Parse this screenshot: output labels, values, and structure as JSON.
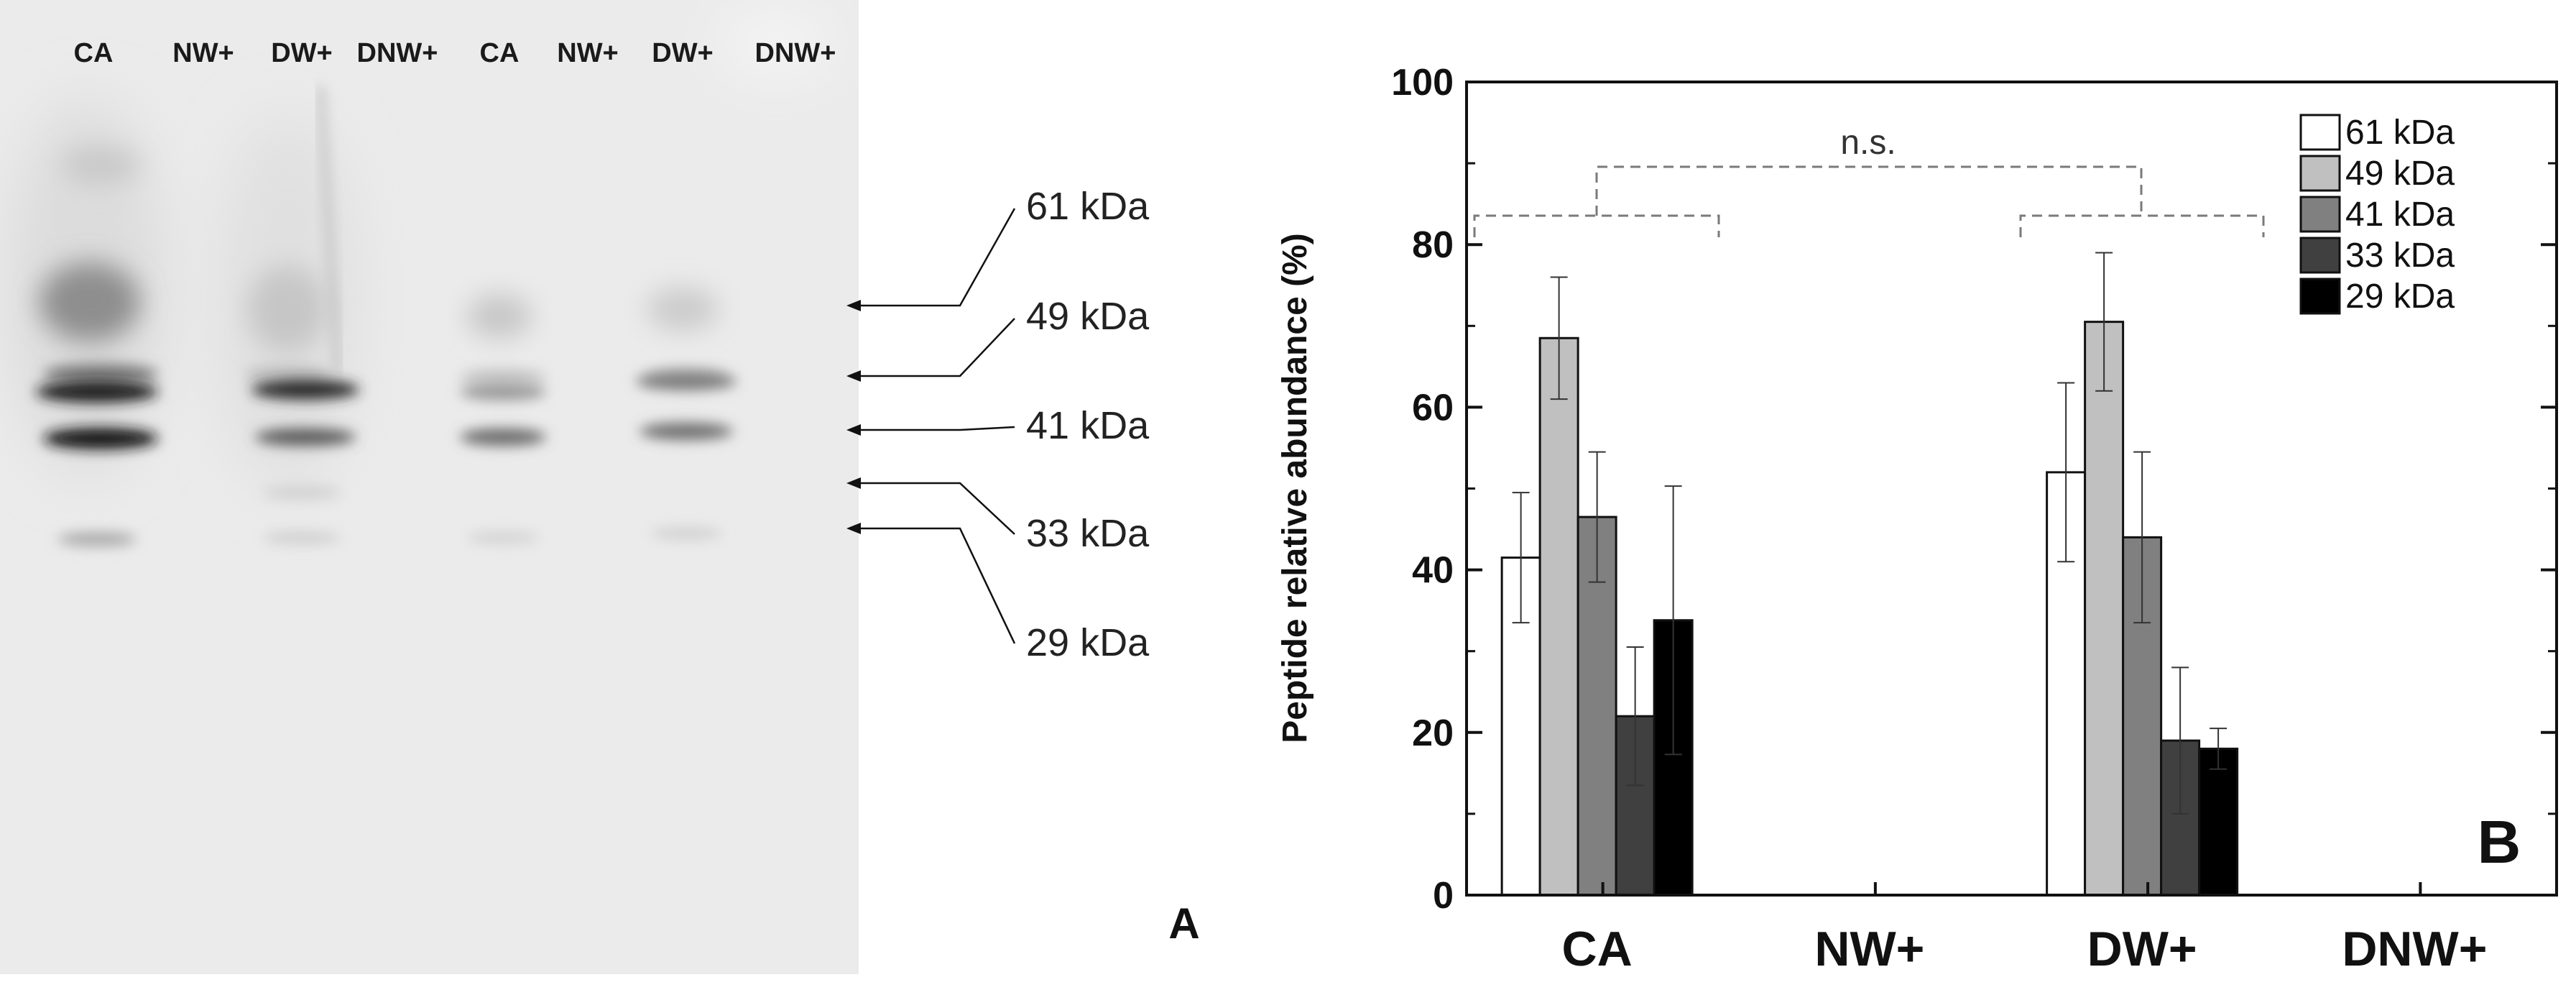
{
  "panel_a": {
    "panel_label": "A",
    "lanes": [
      "CA",
      "NW+",
      "DW+",
      "DNW+",
      "CA",
      "NW+",
      "DW+",
      "DNW+"
    ],
    "markers": [
      "61 kDa",
      "49 kDa",
      "41 kDa",
      "33 kDa",
      "29 kDa"
    ]
  },
  "chart_data": {
    "type": "bar",
    "panel_label": "B",
    "categories": [
      "CA",
      "NW+",
      "DW+",
      "DNW+"
    ],
    "ylabel": "Peptide relative abundance (%)",
    "xlabel": "",
    "ylim": [
      0,
      100
    ],
    "yticks": [
      0,
      20,
      40,
      60,
      80,
      100
    ],
    "legend_position": "top-right",
    "annotation": "n.s.",
    "series": [
      {
        "name": "61 kDa",
        "color": "#ffffff",
        "values": [
          41.5,
          null,
          52.0,
          null
        ],
        "errors": [
          8.0,
          null,
          11.0,
          null
        ]
      },
      {
        "name": "49 kDa",
        "color": "#c0c0c0",
        "values": [
          68.5,
          null,
          70.5,
          null
        ],
        "errors": [
          7.5,
          null,
          8.5,
          null
        ]
      },
      {
        "name": "41 kDa",
        "color": "#808080",
        "values": [
          46.5,
          null,
          44.0,
          null
        ],
        "errors": [
          8.0,
          null,
          10.5,
          null
        ]
      },
      {
        "name": "33 kDa",
        "color": "#404040",
        "values": [
          22.0,
          null,
          19.0,
          null
        ],
        "errors": [
          8.5,
          null,
          9.0,
          null
        ]
      },
      {
        "name": "29 kDa",
        "color": "#000000",
        "values": [
          33.8,
          null,
          18.0,
          null
        ],
        "errors": [
          16.5,
          null,
          2.5,
          null
        ]
      }
    ]
  }
}
